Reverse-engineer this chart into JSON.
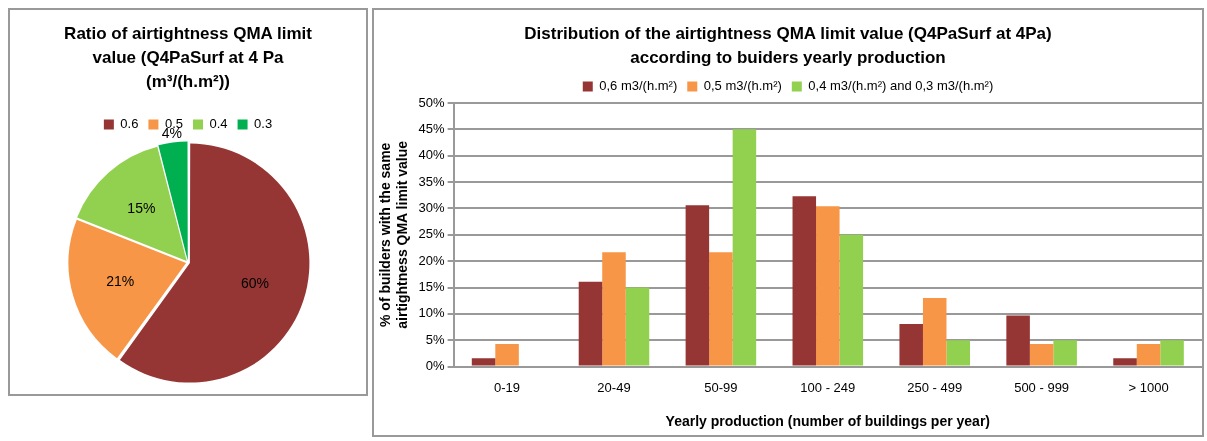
{
  "chart_data": [
    {
      "type": "pie",
      "title": "Ratio of airtightness QMA limit value (Q4PaSurf at 4 Pa (m³/(h.m²))",
      "categories": [
        "0.6",
        "0.5",
        "0.4",
        "0.3"
      ],
      "values": [
        60,
        21,
        15,
        4
      ],
      "colors": [
        "#963634",
        "#f79646",
        "#92d050",
        "#00b050"
      ],
      "value_labels": [
        "60%",
        "21%",
        "15%",
        "4%"
      ],
      "legend": "top"
    },
    {
      "type": "bar",
      "title": "Distribution of the airtightness QMA limit value (Q4PaSurf at 4Pa) according to buiders yearly production",
      "xlabel": "Yearly production (number of buildings per year)",
      "ylabel": "% of builders with the same airtightness QMA limit value",
      "categories": [
        "0-19",
        "20-49",
        "50-99",
        "100 - 249",
        "250 - 499",
        "500 - 999",
        "> 1000"
      ],
      "series": [
        {
          "name": "0,6 m3/(h.m²)",
          "color": "#963634",
          "values": [
            1.6,
            16.1,
            30.6,
            32.3,
            8.1,
            9.7,
            1.6
          ]
        },
        {
          "name": "0,5 m3/(h.m²)",
          "color": "#f79646",
          "values": [
            4.3,
            21.7,
            21.7,
            30.4,
            13,
            4.3,
            4.3
          ]
        },
        {
          "name": "0,4 m3/(h.m²) and 0,3 m3/(h.m²)",
          "color": "#92d050",
          "values": [
            0,
            15,
            45,
            25,
            5,
            5,
            5
          ]
        }
      ],
      "ylim": [
        0,
        50
      ],
      "yticks": [
        {
          "value": 0,
          "label": "0%"
        },
        {
          "value": 5,
          "label": "5%"
        },
        {
          "value": 10,
          "label": "10%"
        },
        {
          "value": 15,
          "label": "15%"
        },
        {
          "value": 20,
          "label": "20%"
        },
        {
          "value": 25,
          "label": "25%"
        },
        {
          "value": 30,
          "label": "30%"
        },
        {
          "value": 35,
          "label": "35%"
        },
        {
          "value": 40,
          "label": "40%"
        },
        {
          "value": 45,
          "label": "45%"
        },
        {
          "value": 50,
          "label": "50%"
        }
      ],
      "grid": "y",
      "legend": "top"
    }
  ]
}
